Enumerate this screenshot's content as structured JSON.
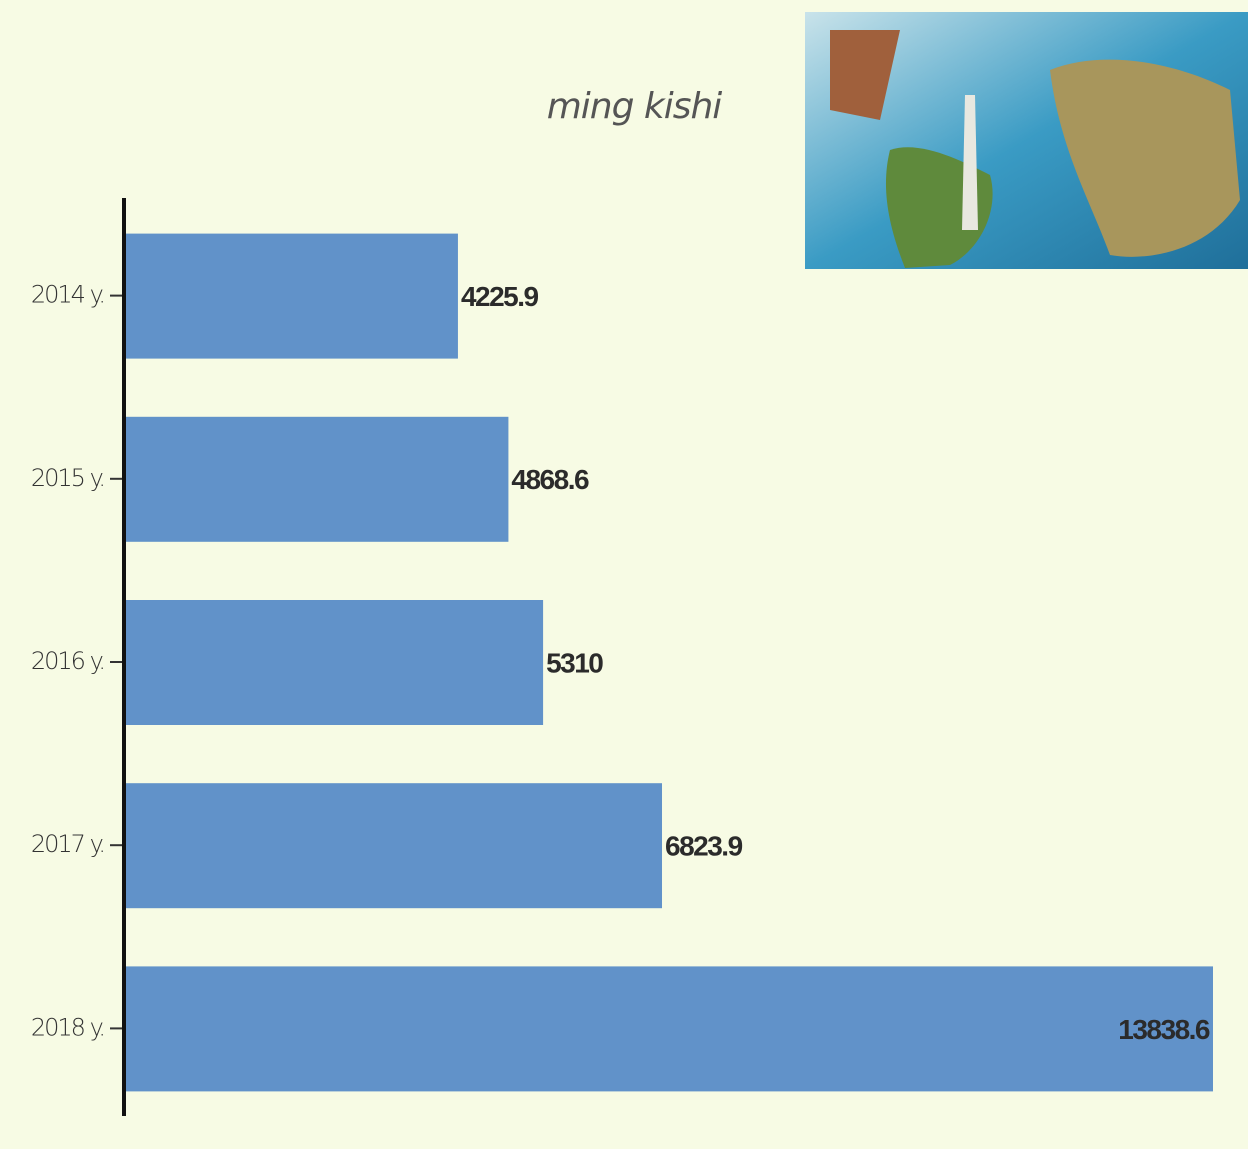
{
  "chart_data": {
    "type": "bar",
    "orientation": "horizontal",
    "title": "ming kishi",
    "categories": [
      "2014 y.",
      "2015 y.",
      "2016 y.",
      "2017 y.",
      "2018 y."
    ],
    "values": [
      4225.9,
      4868.6,
      5310,
      6823.9,
      13838.6
    ],
    "color": "#6192c9",
    "xlim": [
      0,
      13838.6
    ]
  }
}
